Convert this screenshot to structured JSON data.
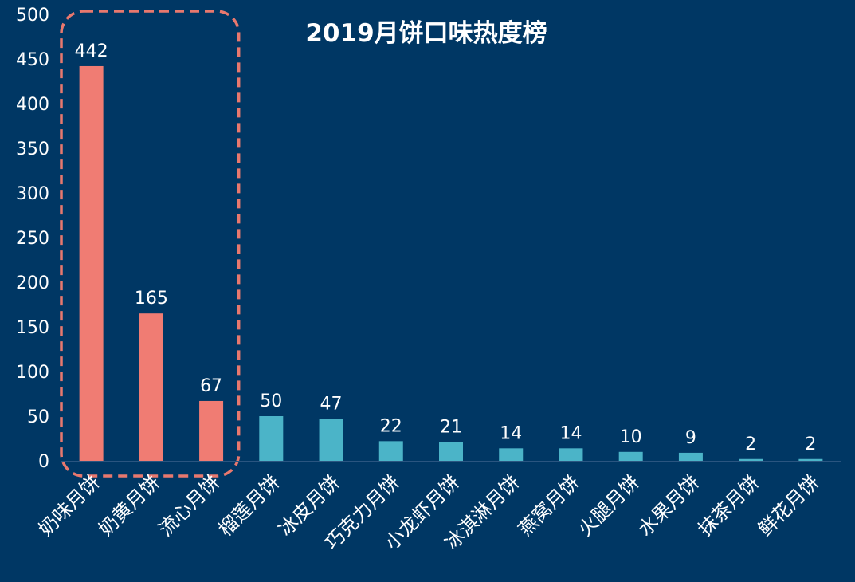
{
  "colors": {
    "background": "#003764",
    "highlight_bar": "#F07C73",
    "normal_bar": "#4BB4C8",
    "highlight_frame": "#E8786E",
    "text": "#FFFFFF"
  },
  "chart_data": {
    "type": "bar",
    "title": "2019月饼口味热度榜",
    "xlabel": "",
    "ylabel": "",
    "ylim": [
      0,
      500
    ],
    "yticks": [
      0,
      50,
      100,
      150,
      200,
      250,
      300,
      350,
      400,
      450,
      500
    ],
    "categories": [
      "奶味月饼",
      "奶黄月饼",
      "流心月饼",
      "榴莲月饼",
      "冰皮月饼",
      "巧克力月饼",
      "小龙虾月饼",
      "冰淇淋月饼",
      "燕窝月饼",
      "火腿月饼",
      "水果月饼",
      "抹茶月饼",
      "鲜花月饼"
    ],
    "values": [
      442,
      165,
      67,
      50,
      47,
      22,
      21,
      14,
      14,
      10,
      9,
      2,
      2
    ],
    "highlighted": [
      0,
      1,
      2
    ],
    "grid": false,
    "legend": "none",
    "data_labels": true
  }
}
